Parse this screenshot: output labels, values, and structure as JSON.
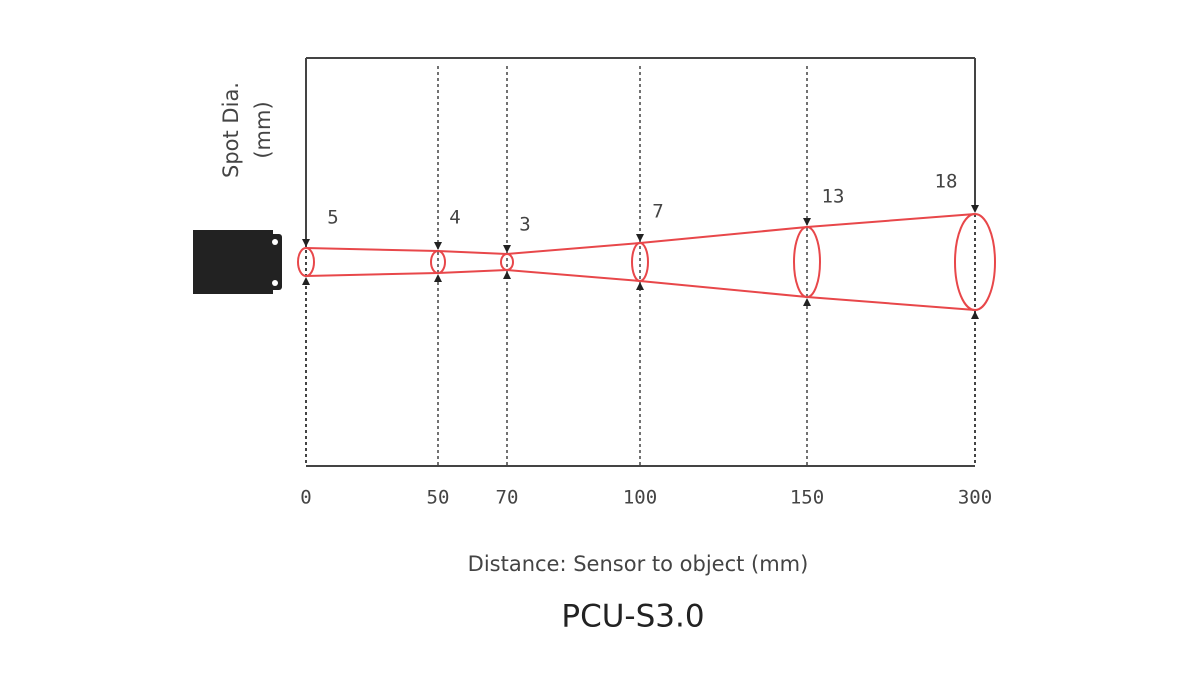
{
  "y_label": [
    "Spot Dia.",
    "(mm)"
  ],
  "stations": [
    {
      "distance": "0",
      "spot": "5"
    },
    {
      "distance": "50",
      "spot": "4"
    },
    {
      "distance": "70",
      "spot": "3"
    },
    {
      "distance": "100",
      "spot": "7"
    },
    {
      "distance": "150",
      "spot": "13"
    },
    {
      "distance": "300",
      "spot": "18"
    }
  ],
  "x_label": "Distance: Sensor to object (mm)",
  "title": "PCU-S3.0"
}
